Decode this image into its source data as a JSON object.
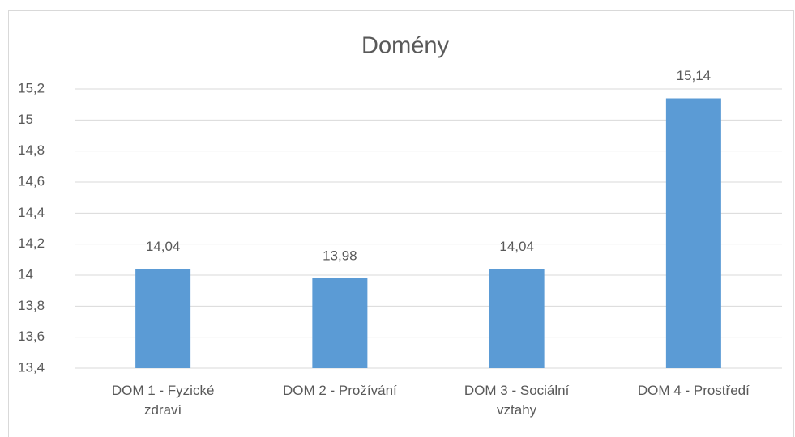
{
  "chart_data": {
    "type": "bar",
    "title": "Domény",
    "categories": [
      "DOM 1 - Fyzické zdraví",
      "DOM 2 - Prožívání",
      "DOM 3 - Sociální vztahy",
      "DOM 4 - Prostředí"
    ],
    "values": [
      14.04,
      13.98,
      14.04,
      15.14
    ],
    "value_labels": [
      "14,04",
      "13,98",
      "14,04",
      "15,14"
    ],
    "color": "#5b9bd5",
    "ylim": [
      13.4,
      15.2
    ],
    "yticks": [
      {
        "value": 13.4,
        "label": "13,4"
      },
      {
        "value": 13.6,
        "label": "13,6"
      },
      {
        "value": 13.8,
        "label": "13,8"
      },
      14,
      {
        "value": 14.2,
        "label": "14,2"
      },
      {
        "value": 14.4,
        "label": "14,4"
      },
      {
        "value": 14.6,
        "label": "14,6"
      },
      {
        "value": 14.8,
        "label": "14,8"
      },
      15,
      {
        "value": 15.2,
        "label": "15,2"
      }
    ],
    "grid": true
  }
}
